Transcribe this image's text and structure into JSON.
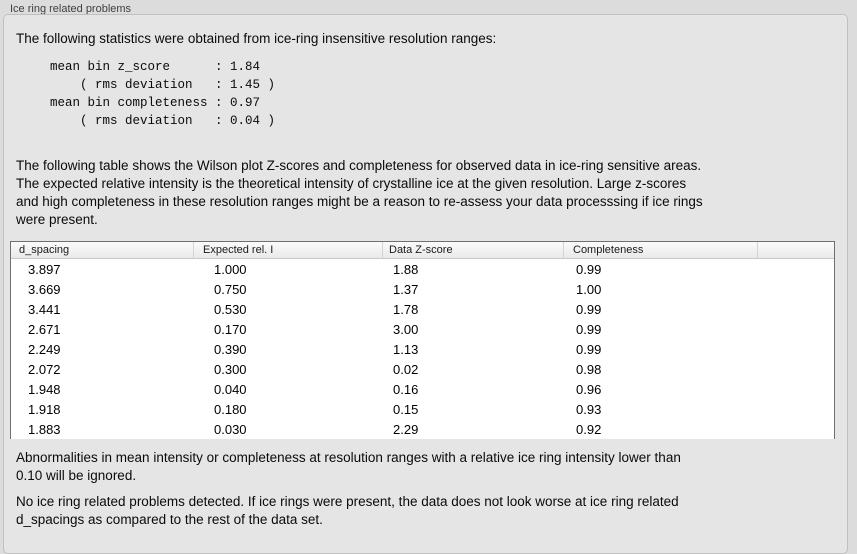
{
  "panel": {
    "title": "Ice ring related problems"
  },
  "intro": "The following statistics were obtained from ice-ring insensitive resolution ranges:",
  "stats": {
    "lines": [
      "mean bin z_score      : 1.84",
      "    ( rms deviation   : 1.45 )",
      "mean bin completeness : 0.97",
      "    ( rms deviation   : 0.04 )"
    ]
  },
  "description": {
    "lines": [
      "The following table shows the Wilson plot Z-scores and completeness for observed data in ice-ring sensitive areas.",
      "The expected relative intensity is the theoretical intensity of crystalline ice at the given resolution. Large z-scores",
      "and high completeness in these resolution ranges might be a reason to re-assess your data processsing if ice rings",
      "were present."
    ]
  },
  "table": {
    "headers": [
      "d_spacing",
      "Expected rel. I",
      "Data Z-score",
      "Completeness"
    ],
    "rows": [
      [
        "3.897",
        "1.000",
        "1.88",
        "0.99"
      ],
      [
        "3.669",
        "0.750",
        "1.37",
        "1.00"
      ],
      [
        "3.441",
        "0.530",
        "1.78",
        "0.99"
      ],
      [
        "2.671",
        "0.170",
        "3.00",
        "0.99"
      ],
      [
        "2.249",
        "0.390",
        "1.13",
        "0.99"
      ],
      [
        "2.072",
        "0.300",
        "0.02",
        "0.98"
      ],
      [
        "1.948",
        "0.040",
        "0.16",
        "0.96"
      ],
      [
        "1.918",
        "0.180",
        "0.15",
        "0.93"
      ],
      [
        "1.883",
        "0.030",
        "2.29",
        "0.92"
      ]
    ]
  },
  "ignore_note": {
    "lines": [
      "Abnormalities in mean intensity or completeness at resolution ranges with a relative ice ring intensity lower than",
      "0.10 will be ignored."
    ]
  },
  "conclusion": {
    "lines": [
      "No ice ring related problems detected. If ice rings were present, the data does not look worse at ice ring related",
      "d_spacings as compared to the rest of the data set."
    ]
  }
}
